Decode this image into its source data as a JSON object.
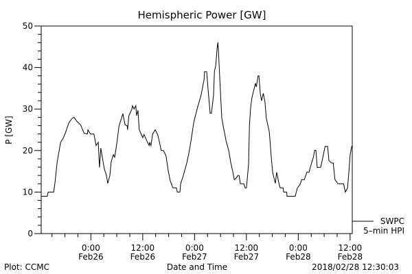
{
  "chart_data": {
    "type": "line",
    "title": "Hemispheric Power [GW]",
    "xlabel": "Date and Time",
    "ylabel": "P [GW]",
    "x_unit": "hours since 2018/02/25 12:30",
    "xlim": [
      0,
      72
    ],
    "ylim": [
      0,
      50
    ],
    "y_ticks": [
      0,
      10,
      20,
      30,
      40,
      50
    ],
    "y_minor_step": 2,
    "x_minor_step_hours": 3,
    "x_ticks": [
      {
        "h": 11.5,
        "line1": "0:00",
        "line2": "Feb26"
      },
      {
        "h": 23.5,
        "line1": "12:00",
        "line2": "Feb26"
      },
      {
        "h": 35.5,
        "line1": "0:00",
        "line2": "Feb27"
      },
      {
        "h": 47.5,
        "line1": "12:00",
        "line2": "Feb27"
      },
      {
        "h": 59.5,
        "line1": "0:00",
        "line2": "Feb28"
      },
      {
        "h": 71.5,
        "line1": "12:00",
        "line2": "Feb28"
      }
    ],
    "legend": {
      "placement": "right-bottom",
      "line1": "SWPC",
      "line2": "5–min HPI"
    },
    "series": [
      {
        "name": "SWPC 5-min HPI",
        "color": "#000000",
        "t": [
          0,
          1.4,
          1.6,
          2.9,
          3.2,
          3.7,
          4.5,
          5.1,
          5.6,
          6.4,
          7.2,
          7.6,
          8.3,
          9.1,
          9.9,
          10.7,
          10.8,
          11.4,
          12.2,
          12.7,
          13.2,
          13.5,
          13.8,
          14.6,
          15.1,
          15.4,
          15.9,
          16.2,
          16.7,
          17.0,
          17.5,
          18.0,
          18.6,
          18.9,
          19.4,
          19.9,
          20.0,
          20.3,
          21.0,
          21.1,
          21.5,
          21.9,
          22.1,
          22.4,
          22.7,
          23.5,
          23.8,
          24.2,
          24.6,
          25.0,
          25.1,
          25.4,
          25.8,
          26.4,
          27.0,
          27.8,
          28.3,
          28.9,
          29.4,
          29.9,
          30.5,
          31.3,
          31.5,
          32.1,
          32.3,
          32.9,
          33.7,
          34.2,
          34.7,
          35.3,
          35.6,
          36.2,
          37.0,
          37.7,
          37.8,
          38.3,
          38.6,
          39.1,
          39.4,
          39.9,
          40.1,
          40.4,
          40.7,
          40.9,
          41.0,
          41.5,
          41.8,
          42.3,
          42.8,
          43.4,
          43.9,
          44.4,
          44.7,
          45.0,
          45.5,
          45.8,
          46.1,
          46.9,
          47.2,
          47.5,
          48.0,
          48.2,
          48.5,
          48.8,
          49.3,
          49.6,
          49.8,
          50.2,
          50.4,
          50.7,
          51.0,
          51.4,
          51.8,
          52.1,
          52.8,
          53.3,
          53.6,
          54.2,
          54.5,
          55.0,
          55.3,
          56.0,
          56.1,
          56.8,
          56.9,
          58.8,
          59.3,
          59.9,
          60.3,
          60.9,
          61.5,
          62.0,
          62.5,
          63.0,
          63.3,
          63.6,
          63.9,
          64.7,
          65.2,
          65.7,
          66.3,
          66.6,
          67.2,
          67.6,
          68.0,
          68.7,
          70.0,
          70.4,
          70.9,
          71.2,
          71.5,
          71.9
        ],
        "values": [
          9,
          9,
          10,
          10,
          12.3,
          17.3,
          22,
          23,
          24.2,
          26.7,
          27.8,
          28,
          27,
          26.2,
          24.2,
          24,
          25,
          24,
          24,
          21.2,
          22,
          15.9,
          20.6,
          15.6,
          14,
          12.1,
          14,
          17.3,
          19,
          18.4,
          21.7,
          25.9,
          27.8,
          28.9,
          26.2,
          26,
          25,
          28.4,
          30,
          30.8,
          30,
          30.8,
          28.4,
          29.7,
          25,
          23.1,
          23.9,
          22.9,
          22,
          21.2,
          22,
          21.2,
          24,
          25,
          23.7,
          20,
          20,
          18.7,
          15.1,
          12.6,
          11,
          11,
          10,
          10,
          12.1,
          14,
          17,
          19.5,
          22.5,
          26.7,
          28,
          30.5,
          33.3,
          37.1,
          39,
          39,
          35,
          29,
          29,
          33.3,
          39.1,
          40.5,
          44.4,
          46.1,
          44.4,
          33.8,
          27.8,
          25,
          22.3,
          20,
          17,
          14.6,
          13,
          13.2,
          14,
          14,
          12,
          12,
          11,
          11,
          16.7,
          26.2,
          30.5,
          32.8,
          35,
          36.2,
          35.3,
          38,
          38,
          33.8,
          32,
          33.8,
          31.7,
          27.8,
          24.5,
          17.9,
          14.6,
          12.1,
          14.8,
          12.3,
          11,
          11,
          10,
          10,
          9,
          9,
          11,
          11.8,
          13,
          13,
          14.8,
          14.8,
          16.7,
          18.4,
          20.1,
          20,
          15.9,
          16,
          18.4,
          21,
          21,
          17.6,
          17,
          17,
          13,
          12,
          12,
          10,
          11,
          14.6,
          19,
          21.1
        ]
      }
    ]
  },
  "footer": {
    "left": "Plot: CCMC",
    "right": "2018/02/28 12:30:03"
  }
}
